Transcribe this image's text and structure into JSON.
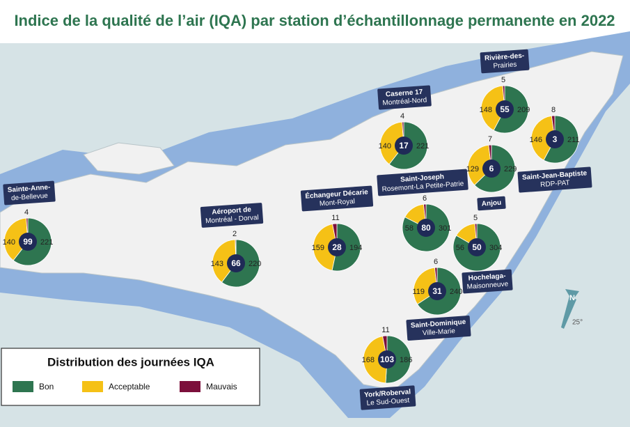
{
  "header": {
    "title": "Indice de la qualité de l’air (IQA) par station d’échantillonnage permanente en 2022"
  },
  "stations": [
    {
      "label": [
        "Sainte-Anne-",
        "de-Bellevue"
      ],
      "id": 99,
      "bon": 221,
      "acceptable": 140,
      "mauvais": 4
    },
    {
      "label": [
        "Aéroport de",
        "Montréal - Dorval"
      ],
      "id": 66,
      "bon": 220,
      "acceptable": 143,
      "mauvais": 2
    },
    {
      "label": [
        "Échangeur Décarie",
        "Mont-Royal"
      ],
      "id": 28,
      "bon": 194,
      "acceptable": 159,
      "mauvais": 11
    },
    {
      "label": [
        "Caserne 17",
        "Montréal-Nord"
      ],
      "id": 17,
      "bon": 221,
      "acceptable": 140,
      "mauvais": 4
    },
    {
      "label": [
        "Rivière-des-",
        "Prairies"
      ],
      "id": 55,
      "bon": 209,
      "acceptable": 148,
      "mauvais": 5
    },
    {
      "label": [
        "Saint-Jean-Baptiste",
        "RDP-PAT"
      ],
      "id": 3,
      "bon": 211,
      "acceptable": 146,
      "mauvais": 8
    },
    {
      "label": [
        "Anjou"
      ],
      "id": 6,
      "bon": 229,
      "acceptable": 129,
      "mauvais": 7
    },
    {
      "label": [
        "Saint-Joseph",
        "Rosemont-La Petite-Patrie"
      ],
      "id": 80,
      "bon": 301,
      "acceptable": 58,
      "mauvais": 6
    },
    {
      "label": [
        "Hochelaga-",
        "Maisonneuve"
      ],
      "id": 50,
      "bon": 304,
      "acceptable": 56,
      "mauvais": 5
    },
    {
      "label": [
        "Saint-Dominique",
        "Ville-Marie"
      ],
      "id": 31,
      "bon": 240,
      "acceptable": 119,
      "mauvais": 6
    },
    {
      "label": [
        "York/Roberval",
        "Le Sud-Ouest"
      ],
      "id": 103,
      "bon": 186,
      "acceptable": 168,
      "mauvais": 11
    }
  ],
  "legend": {
    "title": "Distribution des journées IQA",
    "items": [
      {
        "key": "bon",
        "label": "Bon",
        "color": "#2e7550"
      },
      {
        "key": "acceptable",
        "label": "Acceptable",
        "color": "#f5c116"
      },
      {
        "key": "mauvais",
        "label": "Mauvais",
        "color": "#7c0f3b"
      }
    ]
  },
  "compass": {
    "label": "N",
    "angle": "25°"
  }
}
